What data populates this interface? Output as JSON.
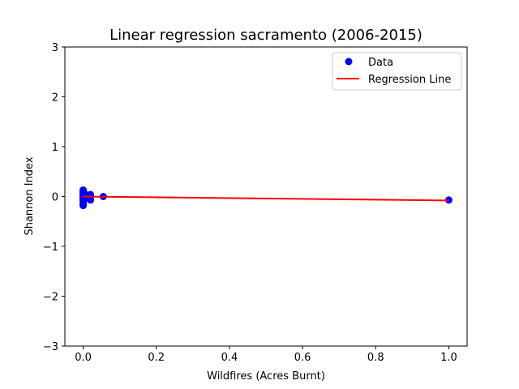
{
  "chart_data": {
    "type": "scatter",
    "title": "Linear regression sacramento (2006-2015)",
    "xlabel": "Wildfires (Acres Burnt)",
    "ylabel": "Shannon Index",
    "xlim": [
      -0.05,
      1.05
    ],
    "ylim": [
      -3,
      3
    ],
    "x_ticks": [
      0.0,
      0.2,
      0.4,
      0.6,
      0.8,
      1.0
    ],
    "y_ticks": [
      -3,
      -2,
      -1,
      0,
      1,
      2,
      3
    ],
    "x_tick_labels": [
      "0.0",
      "0.2",
      "0.4",
      "0.6",
      "0.8",
      "1.0"
    ],
    "y_tick_labels": [
      "−3",
      "−2",
      "−1",
      "0",
      "1",
      "2",
      "3"
    ],
    "grid": false,
    "legend_position": "top-right",
    "series": [
      {
        "name": "Data",
        "kind": "scatter",
        "color": "#0000ff",
        "points": [
          [
            0.0,
            0.13
          ],
          [
            0.0,
            0.1
          ],
          [
            0.0,
            0.07
          ],
          [
            0.0,
            0.04
          ],
          [
            0.0,
            0.01
          ],
          [
            0.0,
            -0.02
          ],
          [
            0.0,
            -0.06
          ],
          [
            0.0,
            -0.1
          ],
          [
            0.0,
            -0.14
          ],
          [
            0.0,
            -0.18
          ],
          [
            0.005,
            0.05
          ],
          [
            0.005,
            -0.04
          ],
          [
            0.01,
            0.02
          ],
          [
            0.015,
            -0.03
          ],
          [
            0.02,
            0.04
          ],
          [
            0.02,
            -0.01
          ],
          [
            0.02,
            -0.07
          ],
          [
            0.055,
            0.0
          ],
          [
            1.0,
            -0.07
          ]
        ]
      },
      {
        "name": "Regression Line",
        "kind": "line",
        "color": "#ff0000",
        "points": [
          [
            0.0,
            0.0
          ],
          [
            1.0,
            -0.08
          ]
        ]
      }
    ]
  }
}
